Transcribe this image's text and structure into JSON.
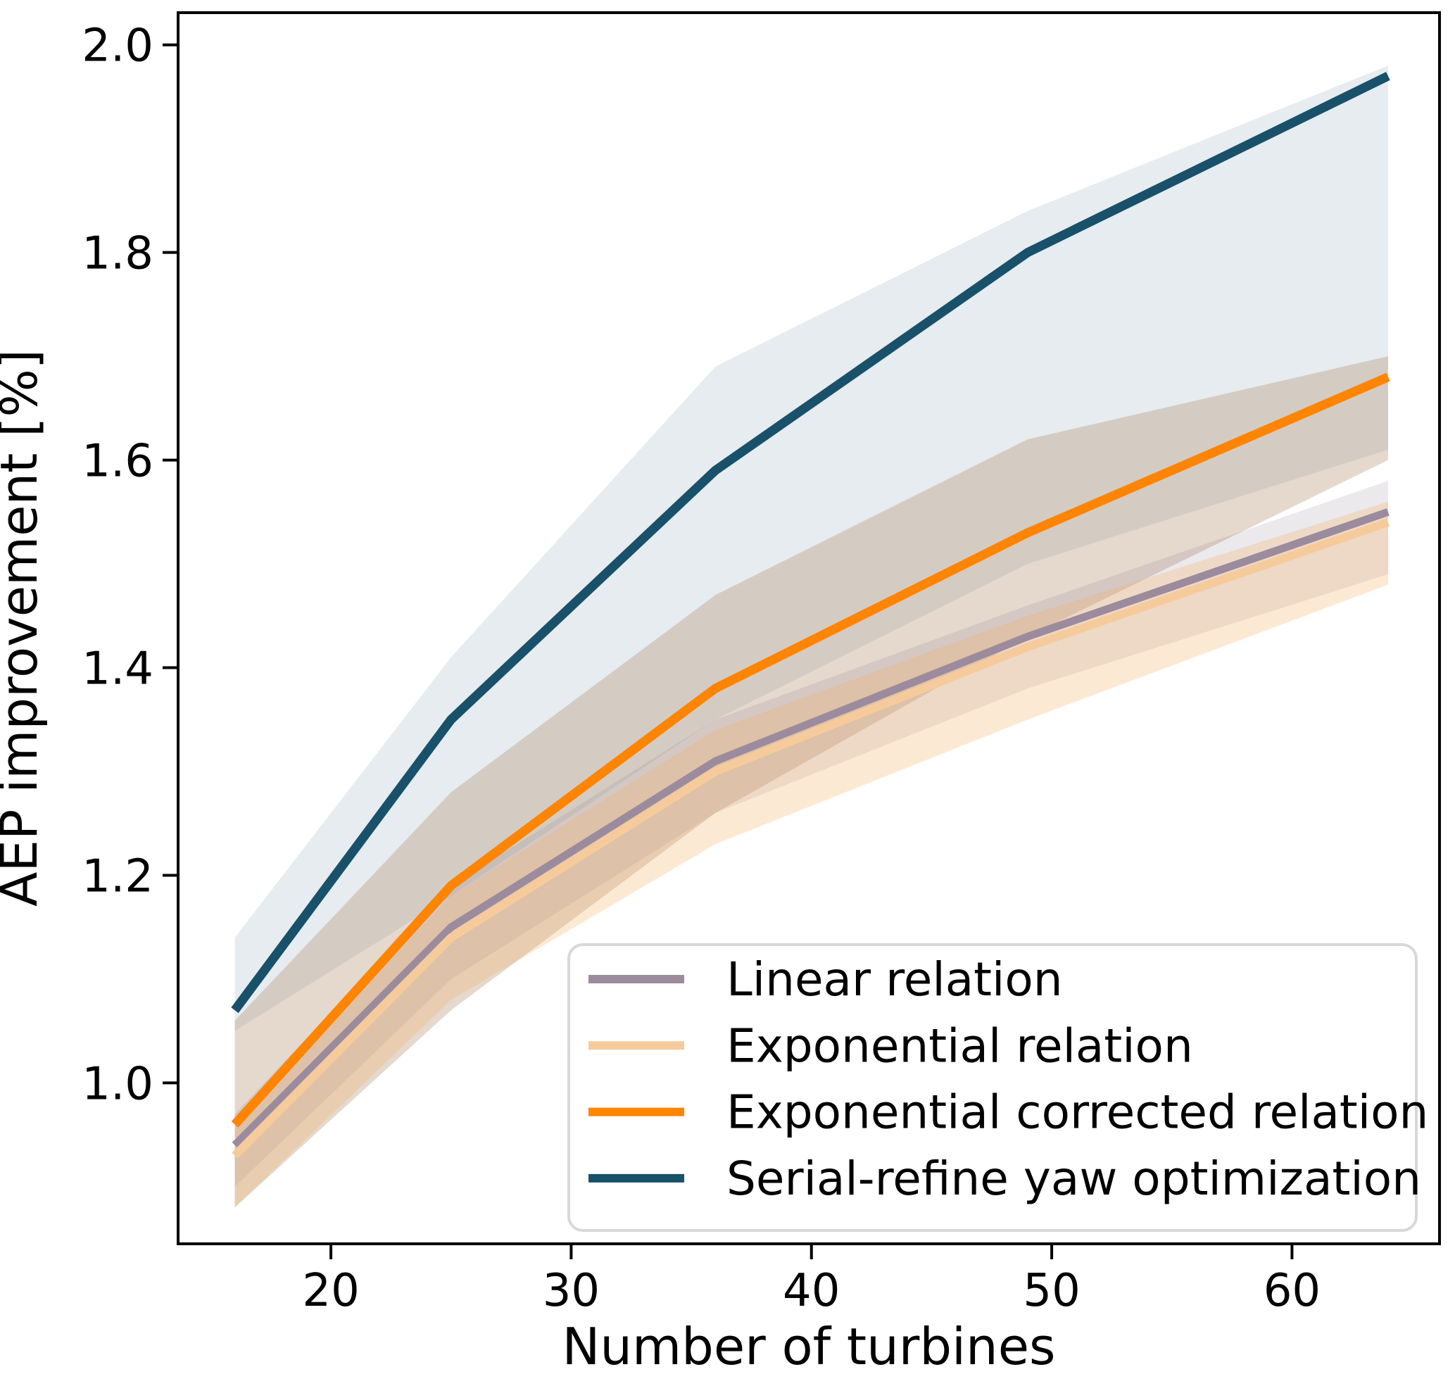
{
  "figure": {
    "background": "#ffffff",
    "axis_color": "#000000"
  },
  "chart_data": {
    "type": "line",
    "title": "",
    "xlabel": "Number of turbines",
    "ylabel": "AEP improvement [%]",
    "x": [
      16,
      25,
      36,
      49,
      64
    ],
    "xlim": [
      13.64,
      66.14
    ],
    "ylim": [
      0.845,
      2.031
    ],
    "x_ticks": [
      20,
      30,
      40,
      50,
      60
    ],
    "y_ticks": [
      1.0,
      1.2,
      1.4,
      1.6,
      1.8,
      2.0
    ],
    "grid": false,
    "legend_position": "lower right",
    "series": [
      {
        "name": "Linear relation",
        "color": "#9b8b9d",
        "line_width": 11,
        "band_fill": "rgba(120,100,130,0.14)",
        "values": [
          0.94,
          1.15,
          1.31,
          1.43,
          1.55
        ],
        "band_upper": [
          0.97,
          1.19,
          1.35,
          1.46,
          1.58
        ],
        "band_lower": [
          0.9,
          1.1,
          1.26,
          1.38,
          1.49
        ]
      },
      {
        "name": "Exponential relation",
        "color": "#f6cb9c",
        "line_width": 12,
        "band_fill": "rgba(245,175,95,0.27)",
        "values": [
          0.93,
          1.14,
          1.3,
          1.42,
          1.54
        ],
        "band_upper": [
          0.96,
          1.18,
          1.34,
          1.45,
          1.56
        ],
        "band_lower": [
          0.88,
          1.08,
          1.23,
          1.35,
          1.48
        ]
      },
      {
        "name": "Exponential corrected relation",
        "color": "#ff8400",
        "line_width": 13,
        "band_fill": "rgba(175,140,105,0.33)",
        "values": [
          0.96,
          1.19,
          1.38,
          1.53,
          1.68
        ],
        "band_upper": [
          1.06,
          1.28,
          1.47,
          1.62,
          1.7
        ],
        "band_lower": [
          0.88,
          1.07,
          1.26,
          1.43,
          1.6
        ]
      },
      {
        "name": "Serial-refine yaw optimization",
        "color": "#19506a",
        "line_width": 13,
        "band_fill": "rgba(25,80,106,0.11)",
        "values": [
          1.07,
          1.35,
          1.59,
          1.8,
          1.97
        ],
        "band_upper": [
          1.14,
          1.41,
          1.69,
          1.84,
          1.98
        ],
        "band_lower": [
          1.05,
          1.18,
          1.35,
          1.5,
          1.61
        ]
      }
    ]
  },
  "legend": {
    "items": [
      "Linear relation",
      "Exponential relation",
      "Exponential corrected relation",
      "Serial-refine yaw optimization"
    ]
  }
}
